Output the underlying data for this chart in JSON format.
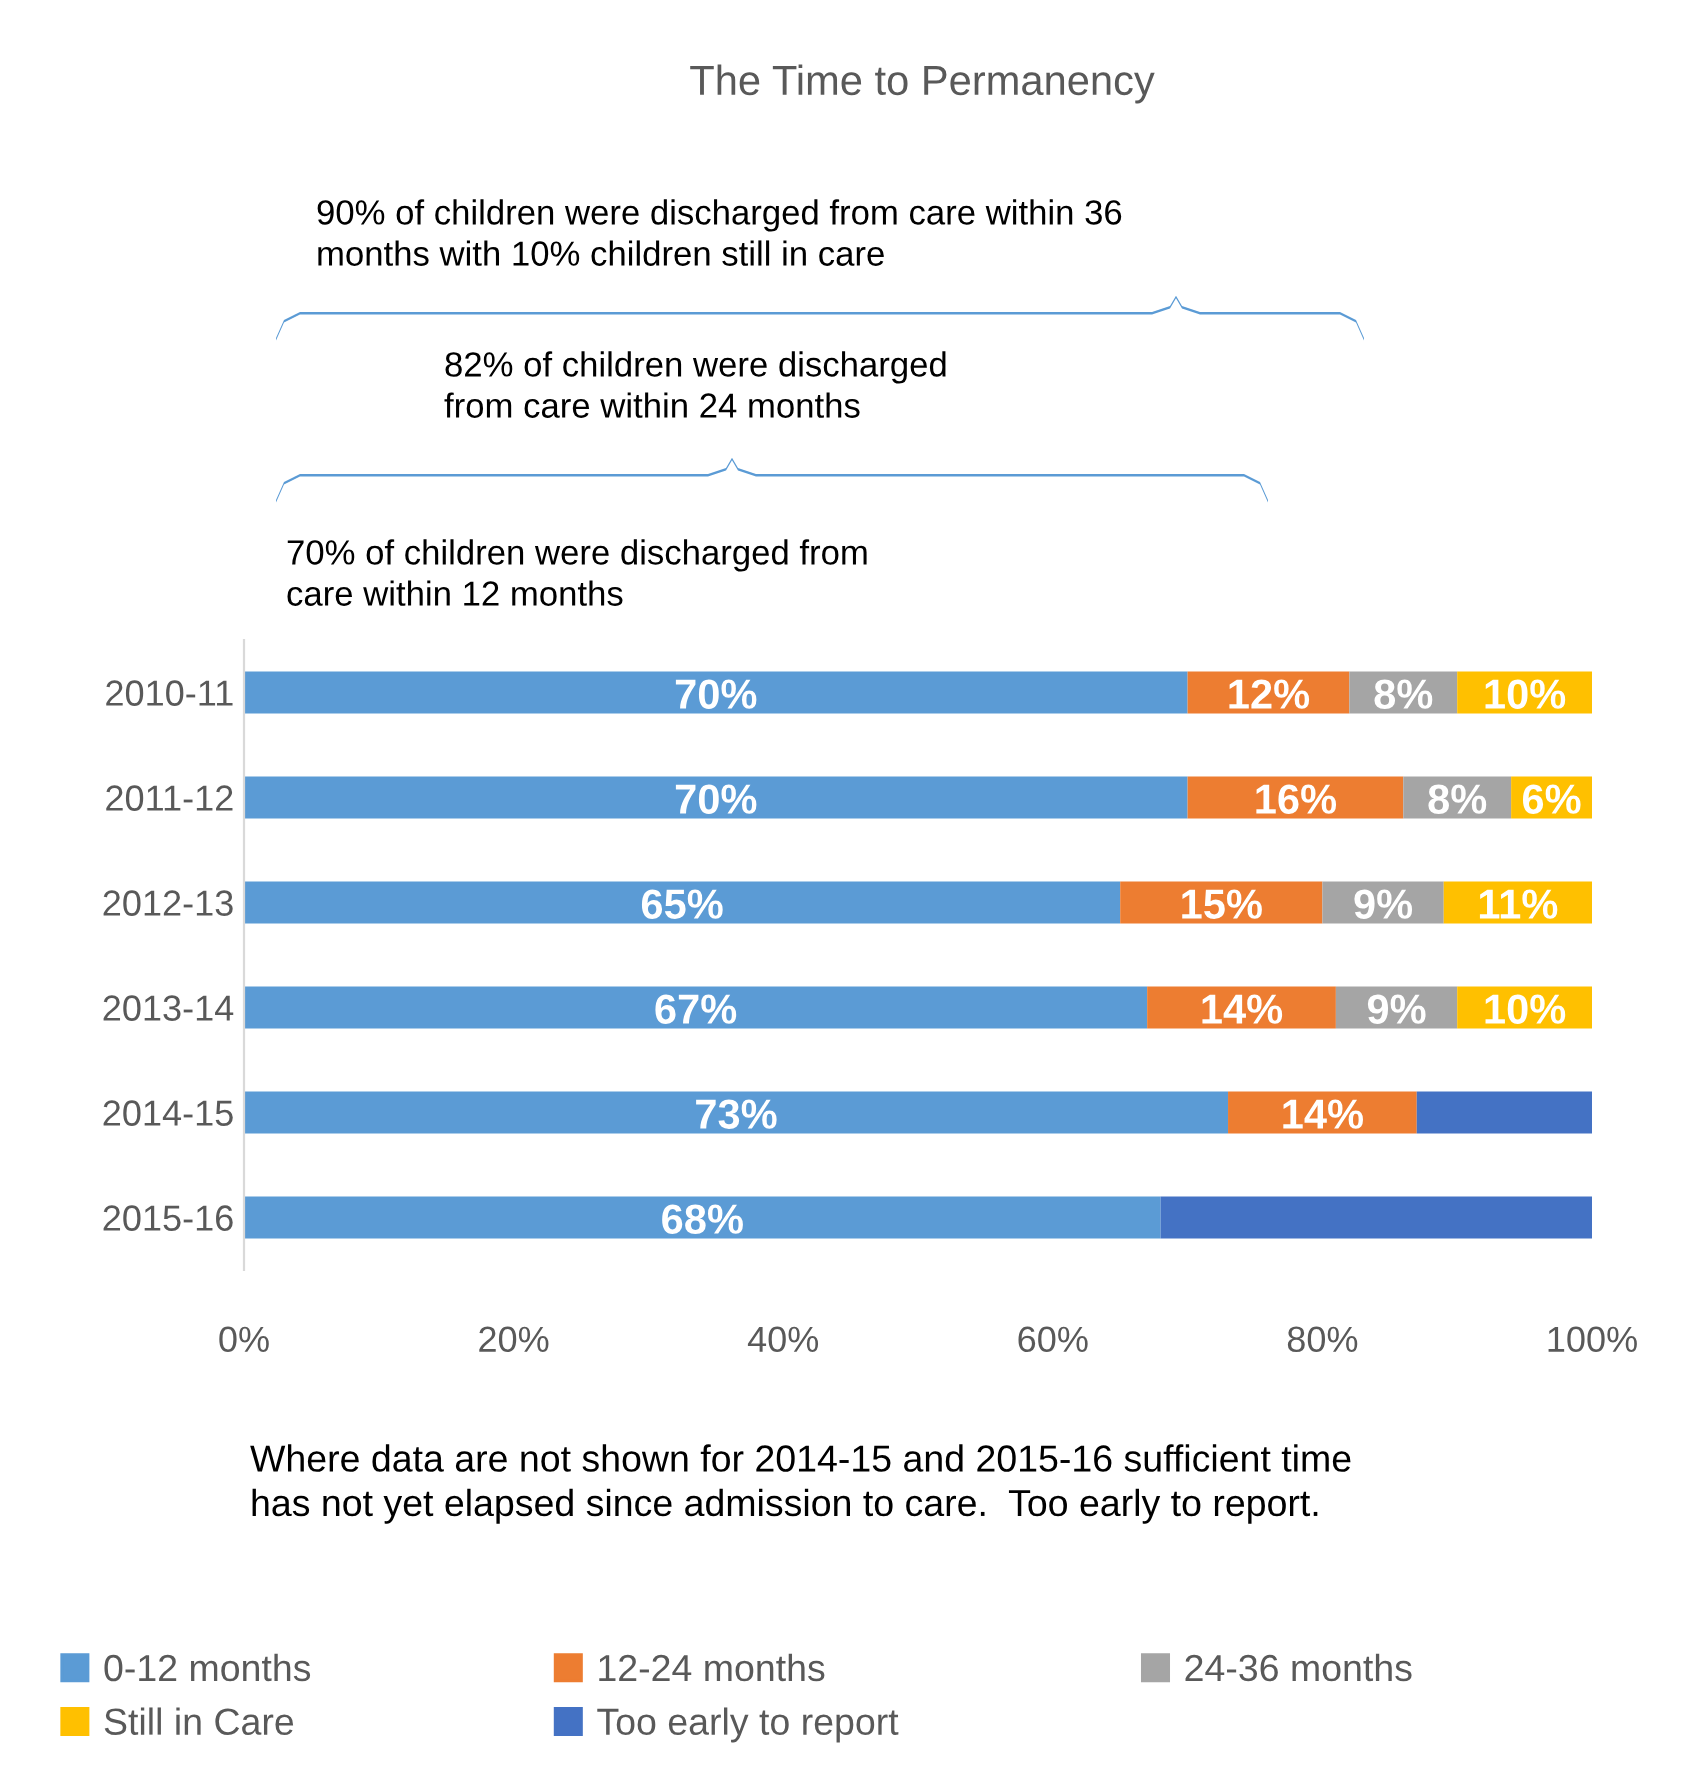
{
  "chart_data": {
    "type": "bar",
    "orientation": "horizontal",
    "stacked": true,
    "title": "The Time to Permanency",
    "categories": [
      "2010-11",
      "2011-12",
      "2012-13",
      "2013-14",
      "2014-15",
      "2015-16"
    ],
    "series": [
      {
        "name": "0-12 months",
        "color": "#5b9bd5",
        "values": [
          70,
          70,
          65,
          67,
          73,
          68
        ],
        "value_labels": [
          "70%",
          "70%",
          "65%",
          "67%",
          "73%",
          "68%"
        ]
      },
      {
        "name": "12-24 months",
        "color": "#ed7d31",
        "values": [
          12,
          16,
          15,
          14,
          14,
          null
        ],
        "value_labels": [
          "12%",
          "16%",
          "15%",
          "14%",
          "14%",
          null
        ]
      },
      {
        "name": "24-36 months",
        "color": "#a5a5a5",
        "values": [
          8,
          8,
          9,
          9,
          null,
          null
        ],
        "value_labels": [
          "8%",
          "8%",
          "9%",
          "9%",
          null,
          null
        ]
      },
      {
        "name": "Still in Care",
        "color": "#ffc000",
        "values": [
          10,
          6,
          11,
          10,
          null,
          null
        ],
        "value_labels": [
          "10%",
          "6%",
          "11%",
          "10%",
          null,
          null
        ]
      },
      {
        "name": "Too early to report",
        "color": "#4472c4",
        "values": [
          null,
          null,
          null,
          null,
          13,
          32
        ],
        "value_labels": [
          null,
          null,
          null,
          null,
          null,
          null
        ]
      }
    ],
    "xlim": [
      0,
      100
    ],
    "xticks": [
      {
        "value": 0,
        "label": "0%"
      },
      {
        "value": 20,
        "label": "20%"
      },
      {
        "value": 40,
        "label": "40%"
      },
      {
        "value": 60,
        "label": "60%"
      },
      {
        "value": 80,
        "label": "80%"
      },
      {
        "value": 100,
        "label": "100%"
      }
    ],
    "annotations": [
      "90% of children were discharged from care within 36\nmonths with 10% children still in care",
      "82% of children were discharged\nfrom care within 24 months",
      "70% of children were discharged from\ncare within 12 months",
      "Where data are not shown for 2014-15 and 2015-16 sufficient time\nhas not yet elapsed since admission to care.  Too early to report."
    ],
    "legend": "bottom",
    "grid": false
  }
}
